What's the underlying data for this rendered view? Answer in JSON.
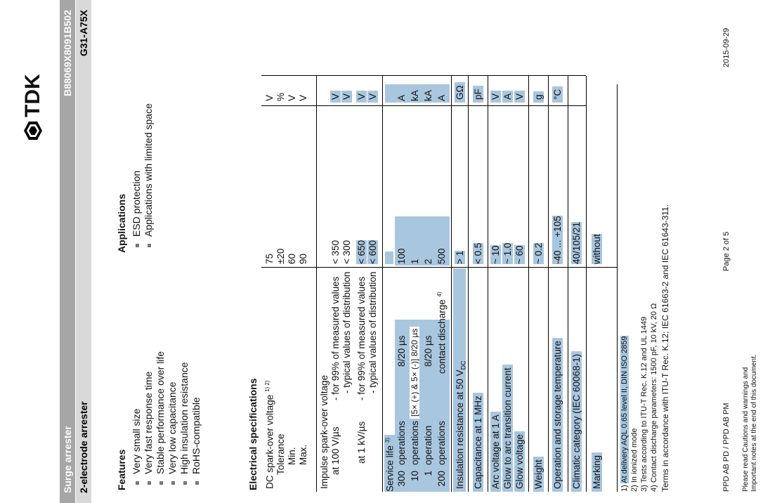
{
  "header": {
    "product": "Surge arrester",
    "code": "B88069X8091B502",
    "type": "2-electrode arrester",
    "model": "G31-A75X",
    "logo": "TDK"
  },
  "features": {
    "title": "Features",
    "items": [
      "Very small size",
      "Very fast response time",
      "Stable performance over life",
      "Very low capacitance",
      "High insulation resistance",
      "RoHS-compatible"
    ]
  },
  "applications": {
    "title": "Applications",
    "items": [
      "ESD protection",
      "Applications with limited space"
    ]
  },
  "electrical": {
    "title": "Electrical specifications",
    "dc": {
      "label": "DC spark-over voltage",
      "sup": "1) 2)",
      "rows": [
        {
          "label": "",
          "value": "75",
          "unit": "V"
        },
        {
          "label": "Tolerance",
          "value": "±20",
          "unit": "%"
        },
        {
          "label": "Min.",
          "value": "60",
          "unit": "V"
        },
        {
          "label": "Max.",
          "value": "90",
          "unit": "V"
        }
      ]
    },
    "impulse": {
      "label": "Impulse spark-over voltage",
      "at100": "at 100 V/µs",
      "at1k": "at 1 kV/µs",
      "rows": [
        {
          "label": "- for 99% of measured values",
          "value": "< 350",
          "unit": "V"
        },
        {
          "label": "- typical values of distribution",
          "value": "< 300",
          "unit": "V"
        },
        {
          "label": "- for 99% of measured values",
          "value": "< 650",
          "unit": "V"
        },
        {
          "label": "- typical values of distribution",
          "value": "< 600",
          "unit": "V"
        }
      ]
    },
    "service": {
      "label": "Service life",
      "sup": "3)",
      "rows": [
        {
          "n": "300",
          "op": "operations",
          "wave": "8/20 µs",
          "value": "100",
          "unit": "A"
        },
        {
          "n": "10",
          "op": "operations",
          "wave": "[5× (+) & 5× (-)]   8/20 µs",
          "value": "1",
          "unit": "kA"
        },
        {
          "n": "1",
          "op": "operation",
          "wave": "8/20 µs",
          "value": "2",
          "unit": "kA"
        },
        {
          "n": "200",
          "op": "operations",
          "wave": "contact discharge",
          "wave_sup": "4)",
          "value": "500",
          "unit": "A"
        }
      ]
    },
    "insulation": {
      "label": "Insulation resistance at 50 V",
      "sub": "DC",
      "value": "> 1",
      "unit": "GΩ"
    },
    "capacitance": {
      "label": "Capacitance at 1 MHz",
      "value": "< 0.5",
      "unit": "pF"
    },
    "arc": {
      "label": "Arc voltage at 1 A",
      "value": "~ 10",
      "unit": "V"
    },
    "glow_arc": {
      "label": "Glow to arc transition current",
      "value": "~ 1.0",
      "unit": "A"
    },
    "glow": {
      "label": "Glow voltage",
      "value": "~ 60",
      "unit": "V"
    },
    "weight": {
      "label": "Weight",
      "value": "~ 0.2",
      "unit": "g"
    },
    "temp": {
      "label": "Operation and storage temperature",
      "value": "-40 ... +105",
      "unit": "°C"
    },
    "climatic": {
      "label": "Climatic category (IEC 60068-1)",
      "value": "40/105/21"
    },
    "marking": {
      "label": "Marking",
      "value": "without"
    }
  },
  "footnotes": [
    {
      "n": "1)",
      "text": "At delivery AQL 0.65 level II, DIN ISO 2859"
    },
    {
      "n": "2)",
      "text": "In ionized mode"
    },
    {
      "n": "3)",
      "text": "Tests according to ITU-T Rec. K.12 and UL 1449"
    },
    {
      "n": "4)",
      "text": "Contact discharge parameters: 1500 pF, 10 kV, 20 Ω"
    }
  ],
  "terms": "Terms in accordance with ITU-T Rec. K.12; IEC 61663-2 and IEC 61643-311.",
  "footer": {
    "dept": "PPD AB PD / PPD AB PM",
    "page": "Page 2 of 5",
    "date": "2015-09-29",
    "note1": "Please read Cautions and warnings and",
    "note2": "Important notes at the end of this document."
  }
}
